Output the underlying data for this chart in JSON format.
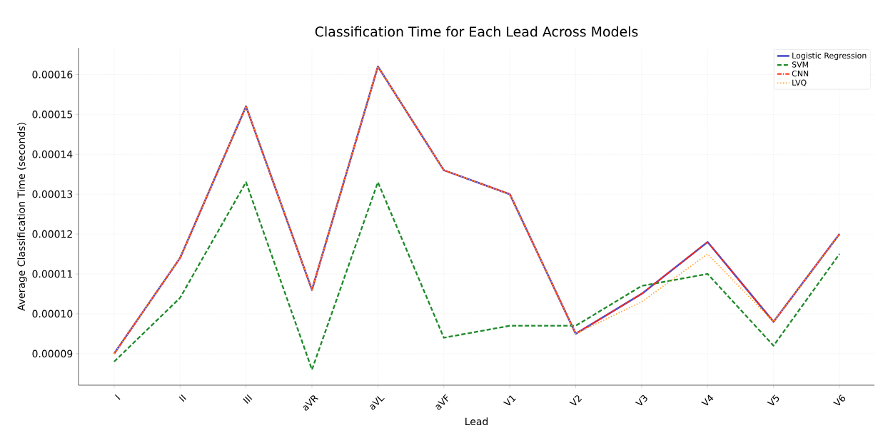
{
  "chart_data": {
    "type": "line",
    "title": "Classification Time for Each Lead Across Models",
    "xlabel": "Lead",
    "ylabel": "Average Classification Time (seconds)",
    "categories": [
      "I",
      "II",
      "III",
      "aVR",
      "aVL",
      "aVF",
      "V1",
      "V2",
      "V3",
      "V4",
      "V5",
      "V6"
    ],
    "series": [
      {
        "name": "Logistic Regression",
        "color": "#4b4bc8",
        "line_style": "solid",
        "values": [
          9e-05,
          0.000114,
          0.000152,
          0.000106,
          0.000162,
          0.000136,
          0.00013,
          9.5e-05,
          0.000105,
          0.000118,
          9.8e-05,
          0.00012
        ]
      },
      {
        "name": "SVM",
        "color": "#1f8a2a",
        "line_style": "dashed",
        "values": [
          8.8e-05,
          0.000104,
          0.000133,
          8.6e-05,
          0.000133,
          9.4e-05,
          9.7e-05,
          9.7e-05,
          0.000107,
          0.00011,
          9.2e-05,
          0.000115
        ]
      },
      {
        "name": "CNN",
        "color": "#ff2a1a",
        "line_style": "dashdot",
        "values": [
          9e-05,
          0.000114,
          0.000152,
          0.000106,
          0.000162,
          0.000136,
          0.00013,
          9.5e-05,
          0.000105,
          0.000118,
          9.8e-05,
          0.00012
        ]
      },
      {
        "name": "LVQ",
        "color": "#ffa030",
        "line_style": "dotted",
        "values": [
          9e-05,
          0.000114,
          0.000152,
          0.000106,
          0.000162,
          0.000136,
          0.00013,
          9.5e-05,
          0.000103,
          0.000115,
          9.8e-05,
          0.00012
        ]
      }
    ],
    "ylim": [
      8.21e-05,
      0.0001667
    ],
    "yticks": [
      {
        "value": 9e-05,
        "label": "0.00009"
      },
      {
        "value": 0.0001,
        "label": "0.00010"
      },
      {
        "value": 0.00011,
        "label": "0.00011"
      },
      {
        "value": 0.00012,
        "label": "0.00012"
      },
      {
        "value": 0.00013,
        "label": "0.00013"
      },
      {
        "value": 0.00014,
        "label": "0.00014"
      },
      {
        "value": 0.00015,
        "label": "0.00015"
      },
      {
        "value": 0.00016,
        "label": "0.00016"
      }
    ],
    "grid": true,
    "legend": "top right",
    "marker": "none"
  }
}
